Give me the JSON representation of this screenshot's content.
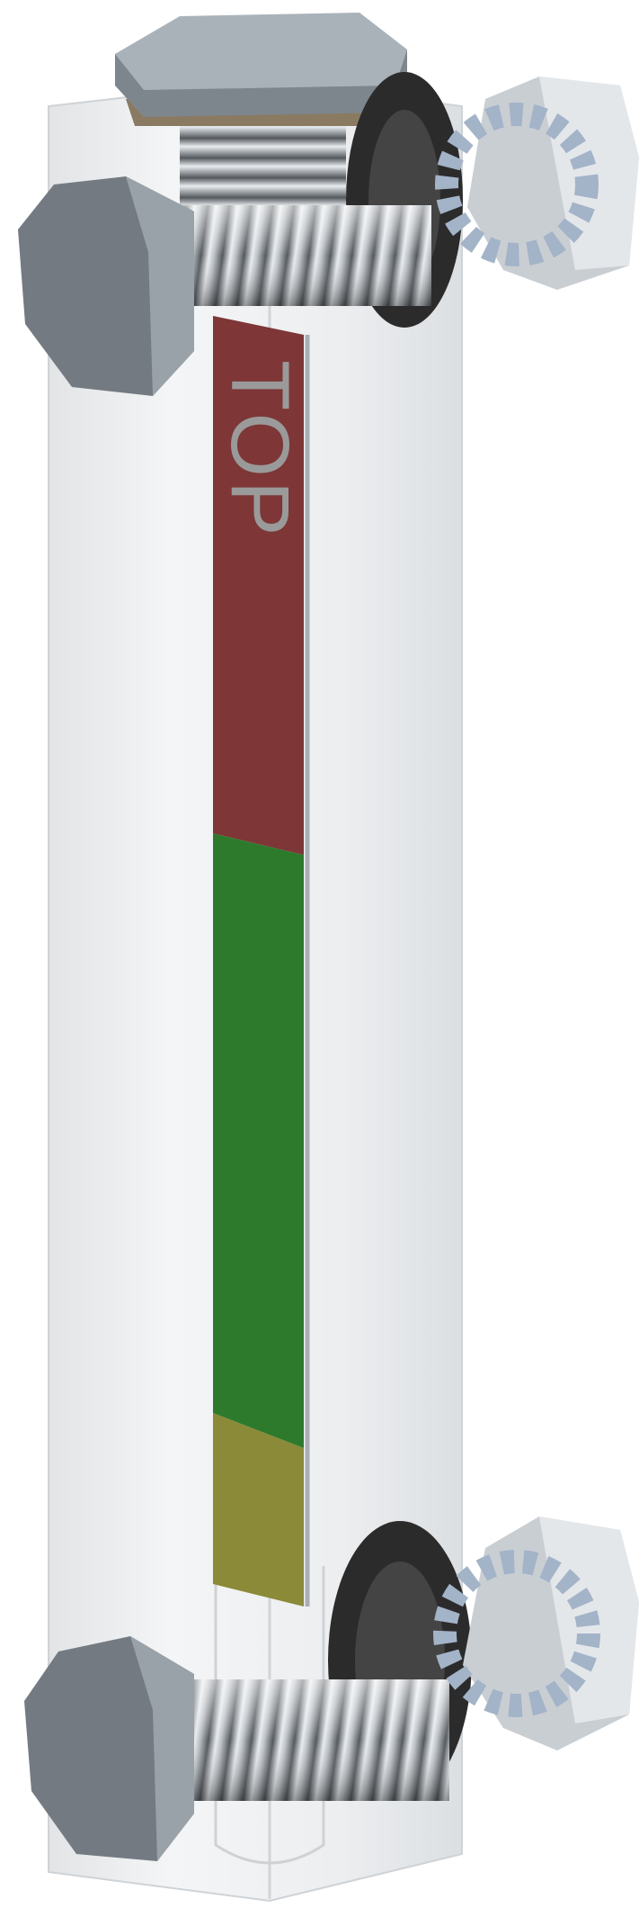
{
  "label": "TOP"
}
